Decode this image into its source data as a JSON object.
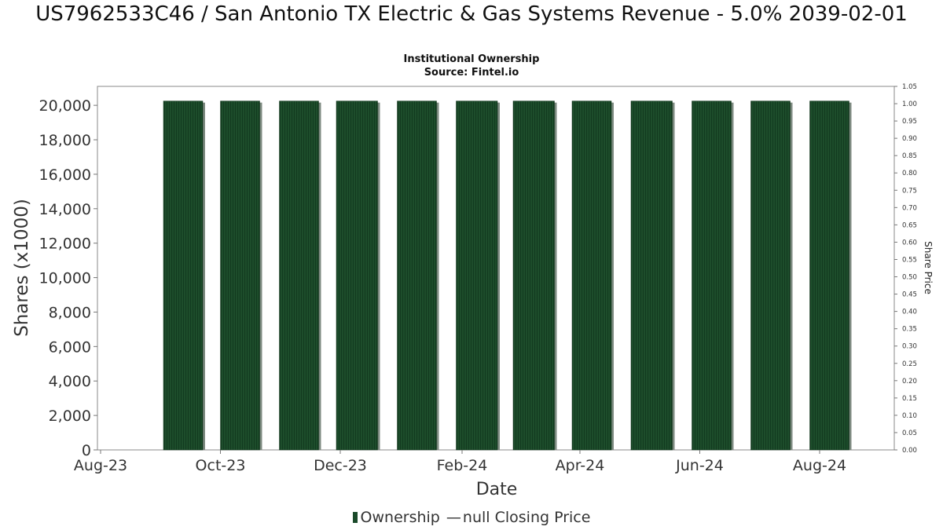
{
  "chart_data": {
    "type": "bar",
    "title": "US7962533C46 / San Antonio TX Electric & Gas Systems Revenue - 5.0% 2039-02-01",
    "subtitle": "Institutional Ownership",
    "source": "Source: Fintel.io",
    "xlabel": "Date",
    "ylabel": "Shares (x1000)",
    "y2label": "Share Price",
    "x_ticks": [
      "Aug-23",
      "Oct-23",
      "Dec-23",
      "Feb-24",
      "Apr-24",
      "Jun-24",
      "Aug-24"
    ],
    "y_ticks": [
      "0",
      "2,000",
      "4,000",
      "6,000",
      "8,000",
      "10,000",
      "12,000",
      "14,000",
      "16,000",
      "18,000",
      "20,000"
    ],
    "y2_ticks": [
      "0.00",
      "0.05",
      "0.10",
      "0.15",
      "0.20",
      "0.25",
      "0.30",
      "0.35",
      "0.40",
      "0.45",
      "0.50",
      "0.55",
      "0.60",
      "0.65",
      "0.70",
      "0.75",
      "0.80",
      "0.85",
      "0.90",
      "0.95",
      "1.00",
      "1.05"
    ],
    "ylim": [
      0,
      21100
    ],
    "y2lim": [
      0,
      1.05
    ],
    "xlim": [
      "2023-08-01",
      "2024-08-31"
    ],
    "series": [
      {
        "name": "Ownership",
        "color": "#1a4a2a",
        "bars": [
          {
            "start": "2023-09-02",
            "end": "2023-09-22",
            "value": 20250
          },
          {
            "start": "2023-10-01",
            "end": "2023-10-21",
            "value": 20250
          },
          {
            "start": "2023-10-31",
            "end": "2023-11-20",
            "value": 20250
          },
          {
            "start": "2023-11-29",
            "end": "2023-12-20",
            "value": 20250
          },
          {
            "start": "2023-12-30",
            "end": "2024-01-19",
            "value": 20250
          },
          {
            "start": "2024-01-29",
            "end": "2024-02-19",
            "value": 20250
          },
          {
            "start": "2024-02-27",
            "end": "2024-03-19",
            "value": 20250
          },
          {
            "start": "2024-03-28",
            "end": "2024-04-17",
            "value": 20250
          },
          {
            "start": "2024-04-27",
            "end": "2024-05-18",
            "value": 20250
          },
          {
            "start": "2024-05-28",
            "end": "2024-06-17",
            "value": 20250
          },
          {
            "start": "2024-06-27",
            "end": "2024-07-17",
            "value": 20250
          },
          {
            "start": "2024-07-27",
            "end": "2024-08-16",
            "value": 20250
          }
        ]
      },
      {
        "name": "null Closing Price",
        "values": []
      }
    ],
    "legend_position": "bottom-center",
    "grid": false
  },
  "legend": {
    "ownership": "Ownership",
    "closing_price": "null Closing Price",
    "line_glyph": "—"
  }
}
